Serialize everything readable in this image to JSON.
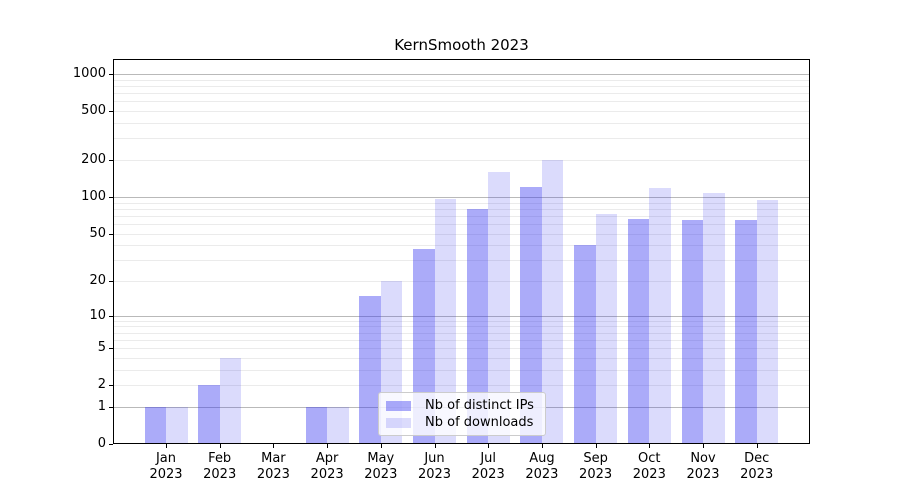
{
  "chart_data": {
    "type": "bar",
    "title": "KernSmooth 2023",
    "categories": [
      "Jan 2023",
      "Feb 2023",
      "Mar 2023",
      "Apr 2023",
      "May 2023",
      "Jun 2023",
      "Jul 2023",
      "Aug 2023",
      "Sep 2023",
      "Oct 2023",
      "Nov 2023",
      "Dec 2023"
    ],
    "series": [
      {
        "name": "Nb of distinct IPs",
        "color": "rgba(55,55,240,0.42)",
        "color_hex_on_white": "#abable",
        "values": [
          1,
          2,
          0,
          1,
          15,
          37,
          80,
          120,
          40,
          66,
          65,
          65
        ]
      },
      {
        "name": "Nb of downloads",
        "color": "rgba(55,55,240,0.18)",
        "color_hex_on_white": "#dbdbfc",
        "values": [
          1,
          4,
          0,
          1,
          20,
          97,
          160,
          200,
          72,
          118,
          108,
          94
        ]
      }
    ],
    "yscale": "log1p",
    "ylim": [
      0,
      1290
    ],
    "yticks": [
      0,
      1,
      2,
      5,
      10,
      20,
      50,
      100,
      200,
      500,
      1000
    ],
    "grid": {
      "major_color": "#b9b9b9",
      "minor_color": "#ebebeb",
      "minor": "2-9 per decade"
    },
    "legend": {
      "position": "lower center",
      "entries": [
        "Nb of distinct IPs",
        "Nb of downloads"
      ]
    },
    "axis_color": "#000000",
    "background_color": "#ffffff"
  }
}
